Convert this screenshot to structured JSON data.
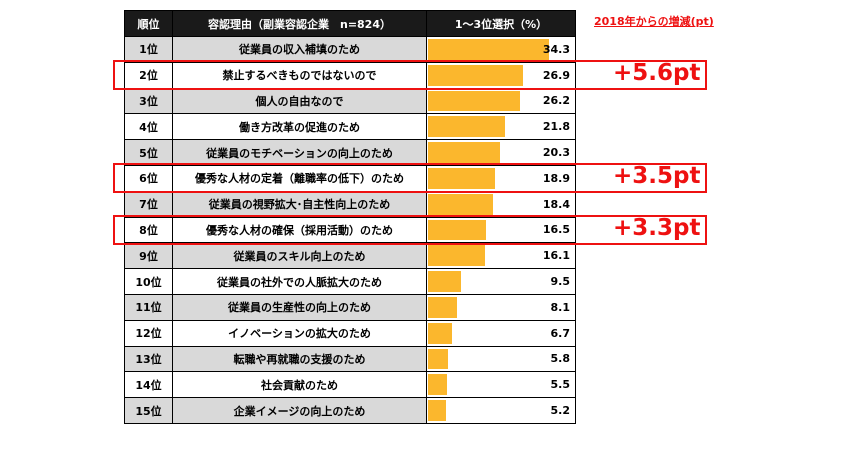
{
  "chart_data": {
    "type": "bar",
    "header": {
      "rank": "順位",
      "reason": "容認理由（副業容認企業　n=824）",
      "value": "1～3位選択（%）"
    },
    "change_title": "2018年からの増減(pt)",
    "xlim": [
      0,
      40
    ],
    "categories": [
      "従業員の収入補填のため",
      "禁止するべきものではないので",
      "個人の自由なので",
      "働き方改革の促進のため",
      "従業員のモチベーションの向上のため",
      "優秀な人材の定着（離職率の低下）のため",
      "従業員の視野拡大･自主性向上のため",
      "優秀な人材の確保（採用活動）のため",
      "従業員のスキル向上のため",
      "従業員の社外での人脈拡大のため",
      "従業員の生産性の向上のため",
      "イノベーションの拡大のため",
      "転職や再就職の支援のため",
      "社会貢献のため",
      "企業イメージの向上のため"
    ],
    "ranks": [
      "1位",
      "2位",
      "3位",
      "4位",
      "5位",
      "6位",
      "7位",
      "8位",
      "9位",
      "10位",
      "11位",
      "12位",
      "13位",
      "14位",
      "15位"
    ],
    "values": [
      34.3,
      26.9,
      26.2,
      21.8,
      20.3,
      18.9,
      18.4,
      16.5,
      16.1,
      9.5,
      8.1,
      6.7,
      5.8,
      5.5,
      5.2
    ],
    "value_labels": [
      "34.3",
      "26.9",
      "26.2",
      "21.8",
      "20.3",
      "18.9",
      "18.4",
      "16.5",
      "16.1",
      "9.5",
      "8.1",
      "6.7",
      "5.8",
      "5.5",
      "5.2"
    ],
    "highlights": [
      {
        "row": 1,
        "delta": "+5.6pt"
      },
      {
        "row": 5,
        "delta": "+3.5pt"
      },
      {
        "row": 7,
        "delta": "+3.3pt"
      }
    ],
    "colors": {
      "bar": "#fbb72d",
      "highlight": "#ee1111",
      "header_bg": "#1a1a1a",
      "row_shade": "#d9d9d9"
    }
  }
}
